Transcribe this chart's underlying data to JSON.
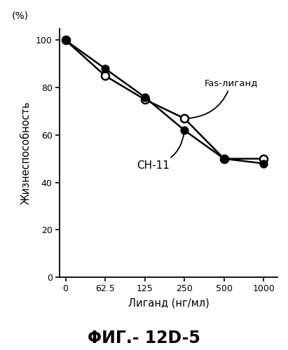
{
  "x_positions": [
    0,
    1,
    2,
    3,
    4,
    5
  ],
  "x_tick_labels": [
    "0",
    "62.5",
    "125",
    "250",
    "500",
    "1000"
  ],
  "fas_ligand_y": [
    100,
    85,
    75,
    67,
    50,
    50
  ],
  "ch11_y": [
    100,
    88,
    76,
    62,
    50,
    48
  ],
  "y_ticks": [
    0,
    20,
    40,
    60,
    80,
    100
  ],
  "y_tick_labels": [
    "0",
    "20",
    "40",
    "60",
    "80",
    "100"
  ],
  "xlabel": "Лиганд (нг/мл)",
  "ylabel": "Жизнеспособность",
  "y_unit": "(%)",
  "fas_label": "Fas-лиганд",
  "ch11_label": "CH-11",
  "figure_label": "ΦИГ.- 12D-5",
  "bg_color": "#ffffff",
  "line_color": "#000000",
  "ylim": [
    0,
    105
  ],
  "xlim": [
    -0.15,
    5.3
  ]
}
